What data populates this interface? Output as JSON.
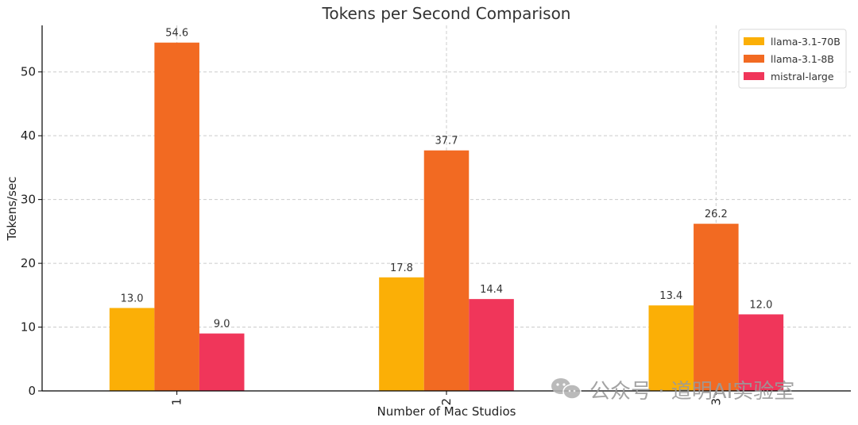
{
  "chart_data": {
    "type": "bar",
    "title": "Tokens per Second Comparison",
    "xlabel": "Number of Mac Studios",
    "ylabel": "Tokens/sec",
    "categories": [
      "1",
      "2",
      "3"
    ],
    "series": [
      {
        "name": "llama-3.1-70B",
        "color": "#FBAF06",
        "values": [
          13.0,
          17.8,
          13.4
        ]
      },
      {
        "name": "llama-3.1-8B",
        "color": "#F26A22",
        "values": [
          54.6,
          37.7,
          26.2
        ]
      },
      {
        "name": "mistral-large",
        "color": "#F0365A",
        "values": [
          9.0,
          14.4,
          12.0
        ]
      }
    ],
    "ylim": [
      0,
      57.3
    ],
    "yticks": [
      0,
      10,
      20,
      30,
      40,
      50
    ],
    "grid": true,
    "legend_position": "top-right",
    "x_tick_rotation": "vertical"
  },
  "watermark": {
    "text": "公众号 · 道明AI实验室",
    "icon": "wechat-icon"
  }
}
